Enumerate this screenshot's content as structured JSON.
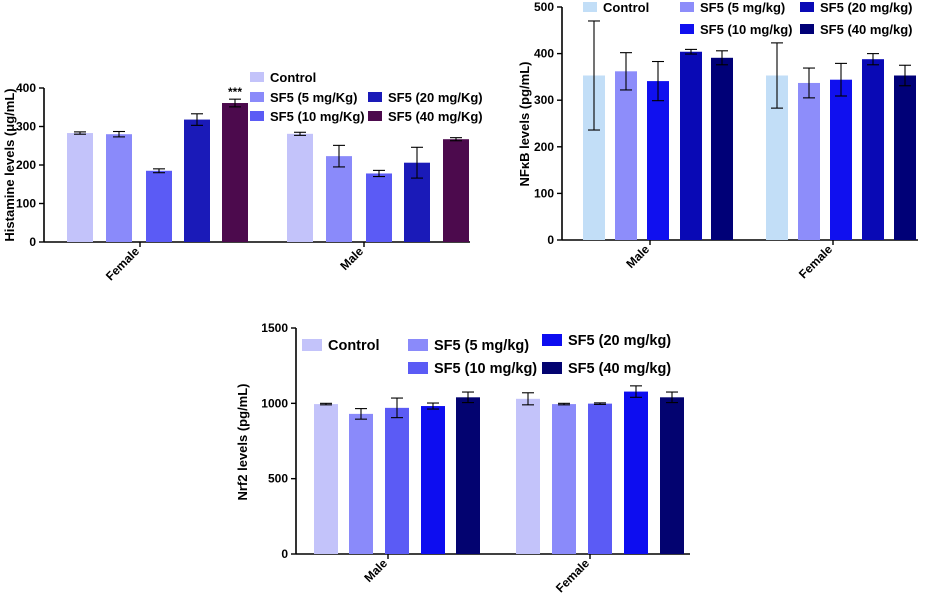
{
  "chart_data": [
    {
      "type": "bar",
      "id": "histamine",
      "ylabel": "Histamine levels (μg/mL)",
      "ylim": [
        0,
        400
      ],
      "yticks": [
        0,
        100,
        200,
        300,
        400
      ],
      "categories": [
        "Female",
        "Male"
      ],
      "colors": [
        "#c3c3fa",
        "#8a8afa",
        "#5b5bf5",
        "#1a1ab8",
        "#4c0a4d"
      ],
      "series": [
        {
          "name": "Control",
          "values": [
            283,
            281
          ],
          "errors": [
            3,
            4
          ]
        },
        {
          "name": "SF5 (5 mg/Kg)",
          "values": [
            280,
            223
          ],
          "errors": [
            7,
            28
          ]
        },
        {
          "name": "SF5 (10 mg/Kg)",
          "values": [
            185,
            178
          ],
          "errors": [
            5,
            8
          ]
        },
        {
          "name": "SF5 (20 mg/Kg)",
          "values": [
            318,
            206
          ],
          "errors": [
            15,
            40
          ]
        },
        {
          "name": "SF5 (40 mg/Kg)",
          "values": [
            361,
            267
          ],
          "errors": [
            10,
            4
          ]
        }
      ],
      "annotations": [
        {
          "series": 4,
          "category": 0,
          "text": "***"
        }
      ],
      "legend": "top-right"
    },
    {
      "type": "bar",
      "id": "nfkb",
      "ylabel": "NFκB levels (pg/mL)",
      "ylim": [
        0,
        500
      ],
      "yticks": [
        0,
        100,
        200,
        300,
        400,
        500
      ],
      "categories": [
        "Male",
        "Female"
      ],
      "colors": [
        "#c2def7",
        "#8d8dfa",
        "#1010ef",
        "#0909b5",
        "#000077"
      ],
      "series": [
        {
          "name": "Control",
          "values": [
            353,
            353
          ],
          "errors": [
            117,
            70
          ]
        },
        {
          "name": "SF5 (5 mg/kg)",
          "values": [
            362,
            337
          ],
          "errors": [
            40,
            32
          ]
        },
        {
          "name": "SF5 (10 mg/kg)",
          "values": [
            341,
            344
          ],
          "errors": [
            42,
            35
          ]
        },
        {
          "name": "SF5 (20 mg/kg)",
          "values": [
            404,
            388
          ],
          "errors": [
            5,
            12
          ]
        },
        {
          "name": "SF5 (40 mg/kg)",
          "values": [
            391,
            353
          ],
          "errors": [
            15,
            22
          ]
        }
      ],
      "legend": "top"
    },
    {
      "type": "bar",
      "id": "nrf2",
      "ylabel": "Nrf2 levels (pg/mL)",
      "ylim": [
        0,
        1500
      ],
      "yticks": [
        0,
        500,
        1000,
        1500
      ],
      "categories": [
        "Male",
        "Female"
      ],
      "colors": [
        "#c3c3fa",
        "#8a8afa",
        "#5b5bf5",
        "#0d0df0",
        "#030370"
      ],
      "series": [
        {
          "name": "Control",
          "values": [
            995,
            1030
          ],
          "errors": [
            5,
            40
          ]
        },
        {
          "name": "SF5 (5 mg/kg)",
          "values": [
            930,
            995
          ],
          "errors": [
            35,
            5
          ]
        },
        {
          "name": "SF5 (10 mg/kg)",
          "values": [
            970,
            998
          ],
          "errors": [
            65,
            5
          ]
        },
        {
          "name": "SF5 (20 mg/kg)",
          "values": [
            982,
            1078
          ],
          "errors": [
            20,
            38
          ]
        },
        {
          "name": "SF5 (40 mg/kg)",
          "values": [
            1040,
            1040
          ],
          "errors": [
            35,
            35
          ]
        }
      ],
      "legend": "top"
    }
  ]
}
